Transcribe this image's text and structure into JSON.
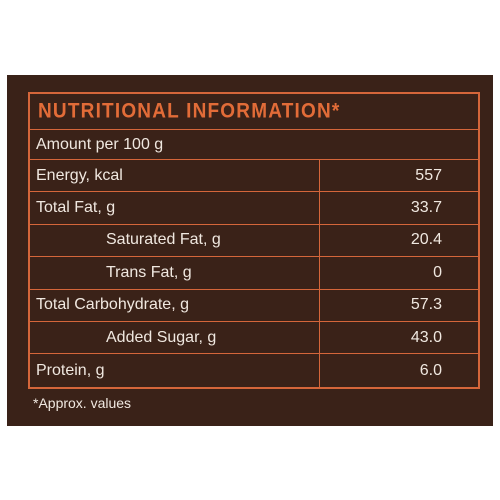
{
  "heading": "NUTRITIONAL INFORMATION*",
  "amount_per": "Amount per 100 g",
  "nutrients": [
    {
      "label": "Energy, kcal",
      "value": "557"
    },
    {
      "label": "Total Fat, g",
      "value": "33.7"
    },
    {
      "label": "Saturated Fat, g",
      "value": "20.4"
    },
    {
      "label": "Trans Fat, g",
      "value": "0"
    },
    {
      "label": "Total Carbohydrate, g",
      "value": "57.3"
    },
    {
      "label": "Added Sugar, g",
      "value": "43.0"
    },
    {
      "label": "Protein, g",
      "value": "6.0"
    }
  ],
  "footnote": "*Approx. values",
  "colors": {
    "background": "#3a2218",
    "accent": "#d5663a",
    "text": "#f0e8e0"
  }
}
